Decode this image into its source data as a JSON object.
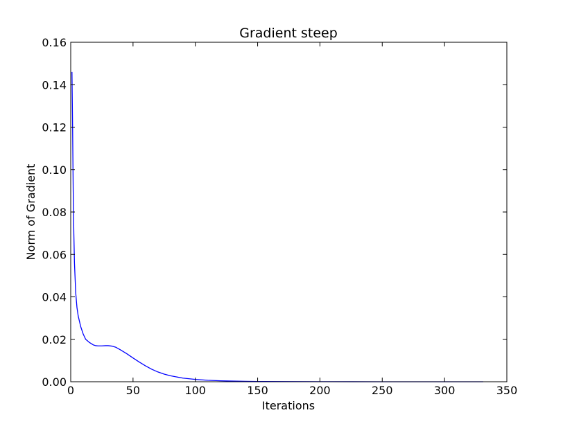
{
  "chart_data": {
    "type": "line",
    "title": "Gradient steep",
    "xlabel": "Iterations",
    "ylabel": "Norm of Gradient",
    "xlim": [
      0,
      350
    ],
    "ylim": [
      0,
      0.16
    ],
    "xticks": [
      0,
      50,
      100,
      150,
      200,
      250,
      300,
      350
    ],
    "xtick_labels": [
      "0",
      "50",
      "100",
      "150",
      "200",
      "250",
      "300",
      "350"
    ],
    "yticks": [
      0,
      0.02,
      0.04,
      0.06,
      0.08,
      0.1,
      0.12,
      0.14,
      0.16
    ],
    "ytick_labels": [
      "0.00",
      "0.02",
      "0.04",
      "0.06",
      "0.08",
      "0.10",
      "0.12",
      "0.14",
      "0.16"
    ],
    "grid": false,
    "line_color": "#0000ff",
    "series": [
      {
        "x": [
          1,
          1.5,
          2,
          2.5,
          3,
          4,
          5,
          6,
          8,
          10,
          12,
          15,
          18,
          20,
          22,
          25,
          28,
          30,
          33,
          36,
          40,
          45,
          50,
          55,
          60,
          65,
          70,
          75,
          80,
          90,
          100,
          110,
          120,
          130,
          140,
          150,
          175,
          200,
          250,
          300,
          331
        ],
        "y": [
          0.146,
          0.12,
          0.09,
          0.07,
          0.056,
          0.042,
          0.035,
          0.031,
          0.026,
          0.0225,
          0.02,
          0.0185,
          0.0174,
          0.017,
          0.0169,
          0.0169,
          0.017,
          0.017,
          0.0168,
          0.0163,
          0.015,
          0.0132,
          0.0112,
          0.0093,
          0.0075,
          0.0059,
          0.0046,
          0.0036,
          0.0028,
          0.0017,
          0.0011,
          0.0007,
          0.00045,
          0.0003,
          0.0002,
          0.00013,
          6e-05,
          3e-05,
          1e-05,
          5e-06,
          3e-06
        ]
      }
    ]
  }
}
